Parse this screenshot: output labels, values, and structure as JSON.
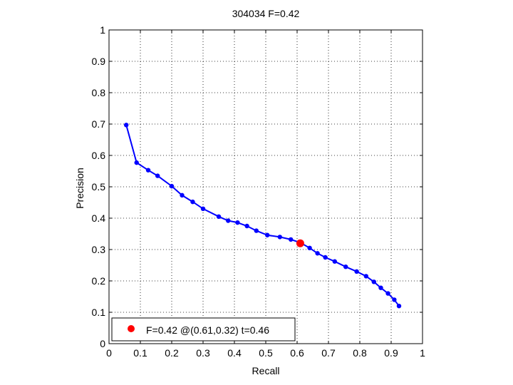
{
  "chart_data": {
    "type": "line",
    "title": "304034 F=0.42",
    "xlabel": "Recall",
    "ylabel": "Precision",
    "xlim": [
      0,
      1
    ],
    "ylim": [
      0,
      1
    ],
    "xticks": [
      "0",
      "0.1",
      "0.2",
      "0.3",
      "0.4",
      "0.5",
      "0.6",
      "0.7",
      "0.8",
      "0.9",
      "1"
    ],
    "yticks": [
      "0",
      "0.1",
      "0.2",
      "0.3",
      "0.4",
      "0.5",
      "0.6",
      "0.7",
      "0.8",
      "0.9",
      "1"
    ],
    "grid": true,
    "legend_position": "bottom-left",
    "series": [
      {
        "color": "#0000ff",
        "x": [
          0.055,
          0.088,
          0.125,
          0.155,
          0.2,
          0.233,
          0.267,
          0.3,
          0.35,
          0.38,
          0.41,
          0.44,
          0.47,
          0.505,
          0.545,
          0.58,
          0.61,
          0.64,
          0.665,
          0.69,
          0.72,
          0.755,
          0.79,
          0.82,
          0.845,
          0.867,
          0.89,
          0.91,
          0.925
        ],
        "y": [
          0.697,
          0.577,
          0.553,
          0.535,
          0.502,
          0.473,
          0.452,
          0.43,
          0.405,
          0.392,
          0.386,
          0.375,
          0.36,
          0.346,
          0.34,
          0.332,
          0.322,
          0.305,
          0.288,
          0.275,
          0.262,
          0.245,
          0.23,
          0.215,
          0.197,
          0.178,
          0.16,
          0.14,
          0.12
        ]
      }
    ],
    "highlight": {
      "x": 0.61,
      "y": 0.32,
      "color": "#ff0000"
    },
    "legend": {
      "label": "F=0.42 @(0.61,0.32) t=0.46"
    }
  }
}
